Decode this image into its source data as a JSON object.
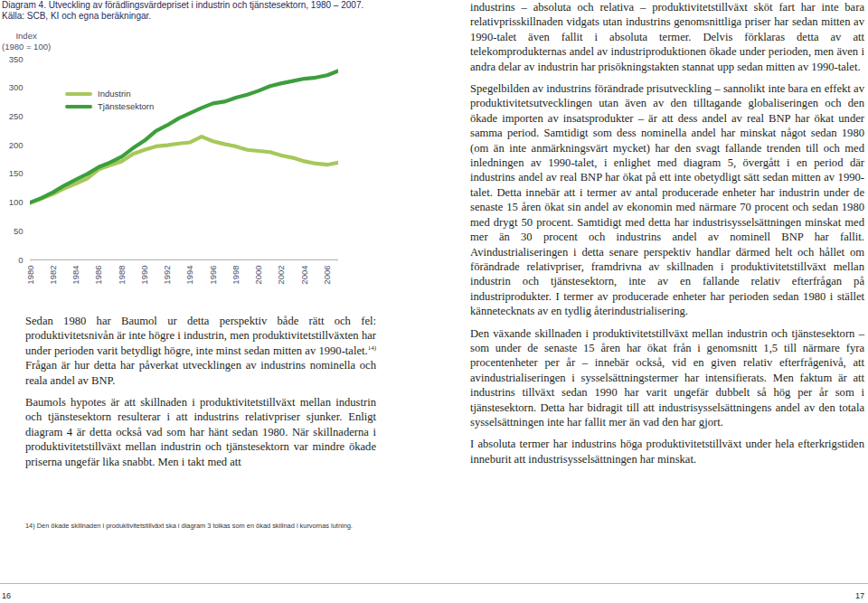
{
  "chart_data": {
    "type": "line",
    "title": "Diagram 4. Utveckling av förädlingsvärdepriset i industrin och tjänstesektorn, 1980 – 2007.",
    "subtitle": "Källa: SCB, KI och egna beräkningar.",
    "ylabel_lines": [
      "Index",
      "(1980 = 100)"
    ],
    "x": [
      1980,
      1981,
      1982,
      1983,
      1984,
      1985,
      1986,
      1987,
      1988,
      1989,
      1990,
      1991,
      1992,
      1993,
      1994,
      1995,
      1996,
      1997,
      1998,
      1999,
      2000,
      2001,
      2002,
      2003,
      2004,
      2005,
      2006,
      2007
    ],
    "series": [
      {
        "name": "Industrin",
        "color": "#a6c85a",
        "values": [
          100,
          107,
          115,
          125,
          133,
          142,
          158,
          165,
          172,
          185,
          192,
          198,
          200,
          203,
          205,
          215,
          207,
          202,
          198,
          192,
          190,
          188,
          182,
          178,
          172,
          168,
          166,
          170
        ]
      },
      {
        "name": "Tjänstesektorn",
        "color": "#3c9f3c",
        "values": [
          100,
          108,
          118,
          130,
          140,
          150,
          162,
          170,
          180,
          195,
          208,
          225,
          235,
          247,
          256,
          265,
          273,
          276,
          283,
          288,
          295,
          303,
          308,
          312,
          316,
          318,
          322,
          330
        ]
      }
    ],
    "xlim": [
      1980,
      2007
    ],
    "ylim": [
      0,
      350
    ],
    "xticks": [
      1980,
      1982,
      1984,
      1986,
      1988,
      1990,
      1992,
      1994,
      1996,
      1998,
      2000,
      2002,
      2004,
      2006
    ],
    "yticks": [
      0,
      50,
      100,
      150,
      200,
      250,
      300,
      350
    ],
    "grid": false,
    "legend": "top-left"
  },
  "page": {
    "left_paragraphs": [
      [
        {
          "text": "Sedan 1980 har Baumol ur detta perspektiv både rätt och fel: produktivitetsnivån är inte högre i industrin, men produktivitetstillväxten har under perioden varit betydligt högre, inte minst sedan mitten av 1990-talet."
        },
        {
          "sup": "14)"
        },
        {
          "text": " Frågan är hur detta har påverkat utvecklingen av industrins nominella och reala andel av BNP."
        }
      ],
      [
        {
          "text": "Baumols hypotes är att skillnaden i produktivitetstillväxt mellan industrin och tjänstesektorn resulterar i att industrins relativpriser sjunker. Enligt diagram 4 är detta också vad som har hänt sedan 1980. När skillnaderna i produktivitetstillväxt mellan industrin och tjänstesektorn var mindre ökade priserna ungefär lika snabbt. Men i takt med att"
        }
      ]
    ],
    "footnote": "14) Den ökade skillnaden i produktivitetstillväxt ska i diagram 3 tolkas som en ökad skillnad i kurvornas lutning.",
    "right_paragraphs": [
      "industrins – absoluta och relativa – produktivitetstillväxt sköt fart har inte bara relativprisskillnaden vidgats utan industrins genomsnittliga priser har sedan mitten av 1990-talet även fallit i absoluta termer. Delvis förklaras detta av att telekomprodukternas andel av industriproduktionen ökade under perioden, men även i andra delar av industrin har prisökningstakten stannat upp sedan mitten av 1990-talet.",
      "Spegelbilden av industrins förändrade prisutveckling – sannolikt inte bara en effekt av produktivitetsutvecklingen utan även av den tilltagande globaliseringen och den ökade importen av insatsprodukter – är att dess andel av real BNP har ökat under samma period. Samtidigt som dess nominella andel har minskat något sedan 1980 (om än inte anmärkningsvärt mycket) har den svagt fallande trenden till och med inledningen av 1990-talet, i enlighet med diagram 5, övergått i en period där industrins andel av real BNP har ökat på ett inte obetydligt sätt sedan mitten av 1990-talet. Detta innebär att i termer av antal producerade enheter har industrin under de senaste 15 åren ökat sin andel av ekonomin med närmare 70 procent och sedan 1980 med drygt 50 procent. Samtidigt med detta har industrisysselsättningen minskat med mer än 30 procent och industrins andel av nominell BNP har fallit. Avindustrialiseringen i detta senare perspektiv handlar därmed helt och hållet om förändrade relativpriser, framdrivna av skillnaden i produktivitetstillväxt mellan industrin och tjänstesektorn, inte av en fallande relativ efterfrågan på industriprodukter. I termer av producerade enheter har perioden sedan 1980 i stället kännetecknats av en tydlig återindustrialisering.",
      "Den växande skillnaden i produktivitetstillväxt mellan industrin och tjänstesektorn – som under de senaste 15 åren har ökat från i genomsnitt 1,5 till närmare fyra procentenheter per år – innebär också, vid en given relativ efterfrågenivå, att avindustrialiseringen i sysselsättningstermer har intensifierats. Men faktum är att industrins tillväxt sedan 1990 har varit ungefär dubbelt så hög per år som i tjänstesektorn. Detta har bidragit till att industrisysselsättningens andel av den totala sysselsättningen inte har fallit mer än vad den har gjort.",
      "I absoluta termer har industrins höga produktivitetstillväxt under hela efterkrigstiden inneburit att industrisysselsättningen har minskat."
    ],
    "page_numbers": [
      "16",
      "17"
    ]
  }
}
